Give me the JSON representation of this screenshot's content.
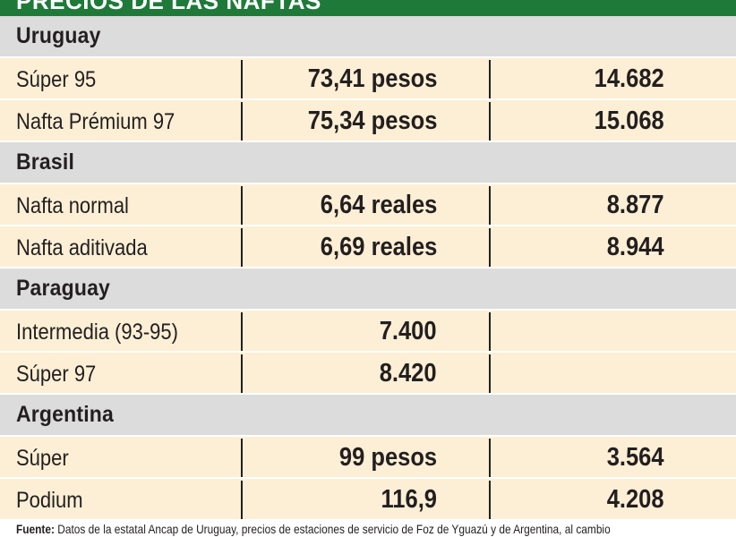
{
  "title": "PRECIOS DE LAS NAFTAS",
  "sections": [
    {
      "name": "Uruguay",
      "rows": [
        {
          "label": "Súper 95",
          "local": "73,41 pesos",
          "guarani": "14.682"
        },
        {
          "label": "Nafta Prémium 97",
          "local": "75,34 pesos",
          "guarani": "15.068"
        }
      ]
    },
    {
      "name": "Brasil",
      "rows": [
        {
          "label": "Nafta normal",
          "local": "6,64 reales",
          "guarani": "8.877"
        },
        {
          "label": "Nafta aditivada",
          "local": "6,69 reales",
          "guarani": "8.944"
        }
      ]
    },
    {
      "name": "Paraguay",
      "rows": [
        {
          "label": "Intermedia (93-95)",
          "local": "7.400",
          "guarani": ""
        },
        {
          "label": "Súper 97",
          "local": "8.420",
          "guarani": ""
        }
      ]
    },
    {
      "name": "Argentina",
      "rows": [
        {
          "label": "Súper",
          "local": "99 pesos",
          "guarani": "3.564"
        },
        {
          "label": "Podium",
          "local": "116,9",
          "guarani": "4.208"
        }
      ]
    }
  ],
  "footer": {
    "label": "Fuente:",
    "text": "Datos de la estatal Ancap de Uruguay, precios de estaciones de servicio de Foz de Yguazú y de Argentina, al cambio"
  },
  "colors": {
    "header": "#1f7a3a",
    "section_bg": "#dcdcdc",
    "row_bg": "#fdefd5"
  }
}
